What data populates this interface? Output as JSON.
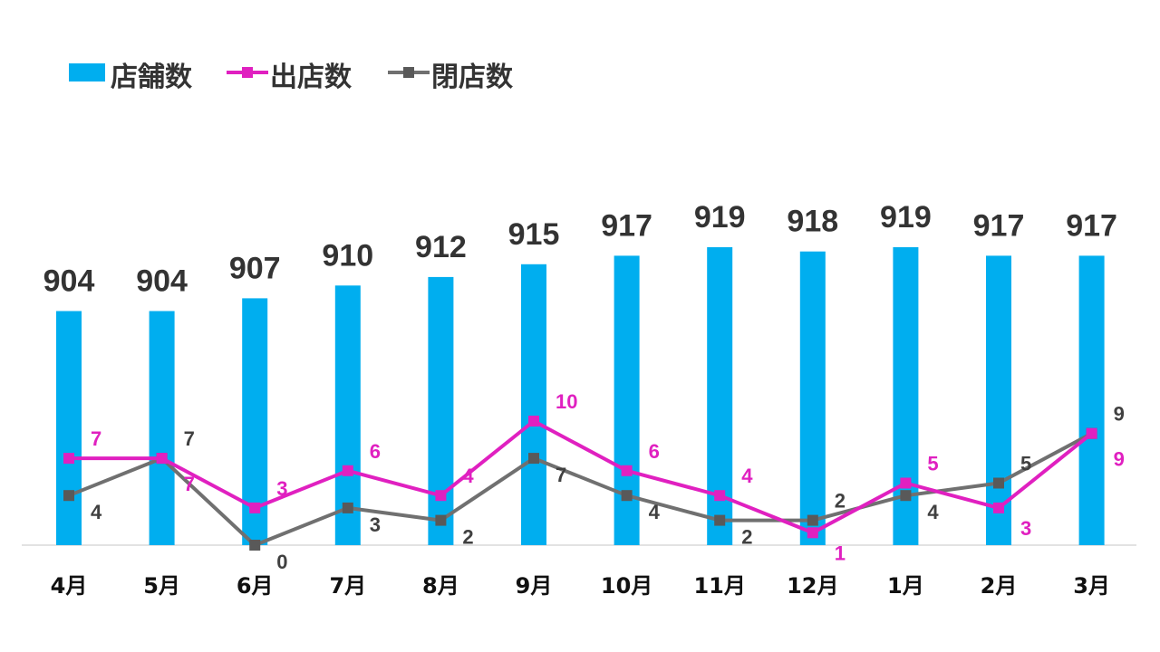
{
  "colors": {
    "bars": "#00AEEF",
    "openings": "#E020C0",
    "closings": "#707070",
    "axis": "#D9D9D9",
    "text": "#333333"
  },
  "legend": {
    "stores": "店舗数",
    "openings": "出店数",
    "closings": "閉店数"
  },
  "chart_data": {
    "type": "bar",
    "categories": [
      "4月",
      "5月",
      "6月",
      "7月",
      "8月",
      "9月",
      "10月",
      "11月",
      "12月",
      "1月",
      "2月",
      "3月"
    ],
    "series": [
      {
        "name": "店舗数",
        "type": "bar",
        "values": [
          904,
          904,
          907,
          910,
          912,
          915,
          917,
          919,
          918,
          919,
          917,
          917
        ]
      },
      {
        "name": "出店数",
        "type": "line",
        "values": [
          7,
          7,
          3,
          6,
          4,
          10,
          6,
          4,
          1,
          5,
          3,
          9
        ]
      },
      {
        "name": "閉店数",
        "type": "line",
        "values": [
          4,
          7,
          0,
          3,
          2,
          7,
          4,
          2,
          2,
          4,
          5,
          9
        ]
      }
    ],
    "legend_position": "top-left",
    "grid": false
  }
}
